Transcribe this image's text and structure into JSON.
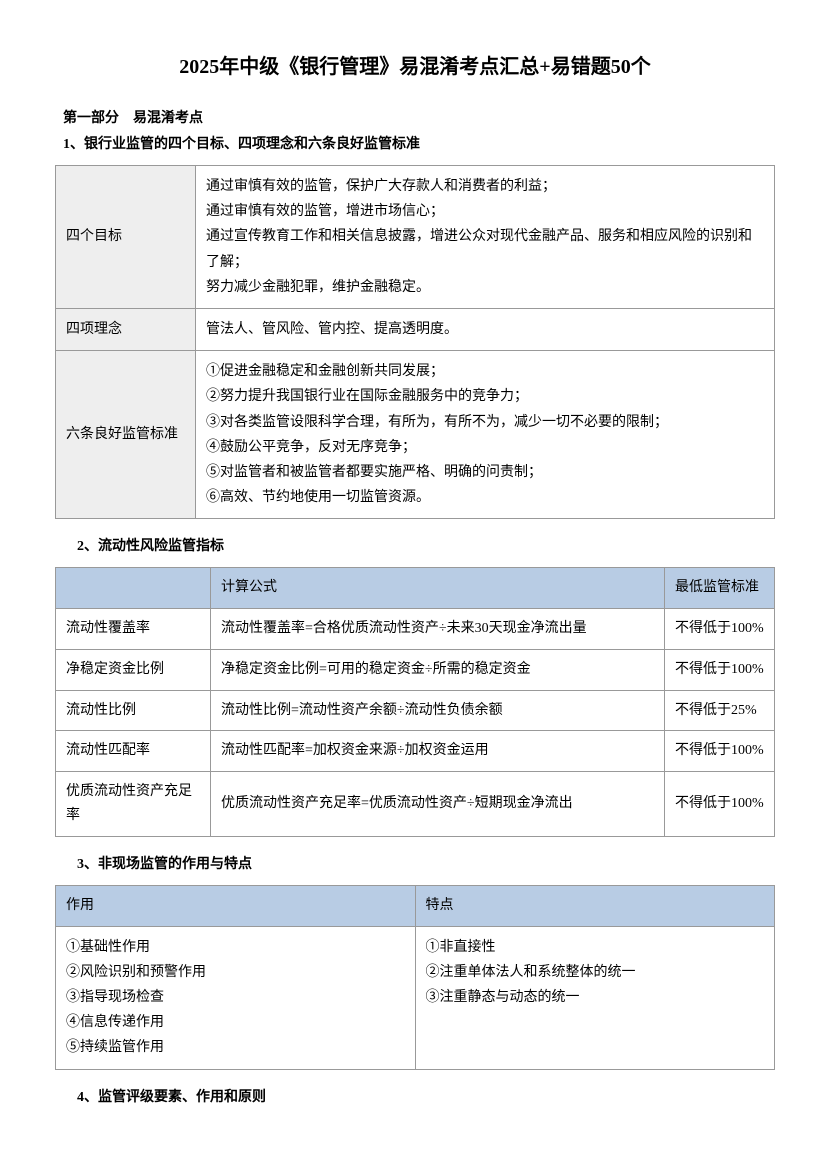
{
  "title": "2025年中级《银行管理》易混淆考点汇总+易错题50个",
  "part1": {
    "heading": "第一部分　易混淆考点",
    "item1": {
      "heading": "1、银行业监管的四个目标、四项理念和六条良好监管标准",
      "table": {
        "row1_label": "四个目标",
        "row1_content": "通过审慎有效的监管，保护广大存款人和消费者的利益；\n通过审慎有效的监管，增进市场信心；\n通过宣传教育工作和相关信息披露，增进公众对现代金融产品、服务和相应风险的识别和了解；\n努力减少金融犯罪，维护金融稳定。",
        "row2_label": "四项理念",
        "row2_content": "管法人、管风险、管内控、提高透明度。",
        "row3_label": "六条良好监管标准",
        "row3_content": "①促进金融稳定和金融创新共同发展；\n②努力提升我国银行业在国际金融服务中的竞争力；\n③对各类监管设限科学合理，有所为，有所不为，减少一切不必要的限制；\n④鼓励公平竞争，反对无序竞争；\n⑤对监管者和被监管者都要实施严格、明确的问责制；\n⑥高效、节约地使用一切监管资源。"
      }
    },
    "item2": {
      "heading": "2、流动性风险监管指标",
      "headers": {
        "col1": "",
        "col2": "计算公式",
        "col3": "最低监管标准"
      },
      "rows": [
        {
          "name": "流动性覆盖率",
          "formula": "流动性覆盖率=合格优质流动性资产÷未来30天现金净流出量",
          "standard": "不得低于100%"
        },
        {
          "name": "净稳定资金比例",
          "formula": "净稳定资金比例=可用的稳定资金÷所需的稳定资金",
          "standard": "不得低于100%"
        },
        {
          "name": "流动性比例",
          "formula": "流动性比例=流动性资产余额÷流动性负债余额",
          "standard": "不得低于25%"
        },
        {
          "name": "流动性匹配率",
          "formula": "流动性匹配率=加权资金来源÷加权资金运用",
          "standard": "不得低于100%"
        },
        {
          "name": "优质流动性资产充足率",
          "formula": "优质流动性资产充足率=优质流动性资产÷短期现金净流出",
          "standard": "不得低于100%"
        }
      ]
    },
    "item3": {
      "heading": "3、非现场监管的作用与特点",
      "headers": {
        "col1": "作用",
        "col2": "特点"
      },
      "col1_content": "①基础性作用\n②风险识别和预警作用\n③指导现场检查\n④信息传递作用\n⑤持续监管作用",
      "col2_content": "①非直接性\n②注重单体法人和系统整体的统一\n③注重静态与动态的统一"
    },
    "item4": {
      "heading": "4、监管评级要素、作用和原则"
    }
  }
}
